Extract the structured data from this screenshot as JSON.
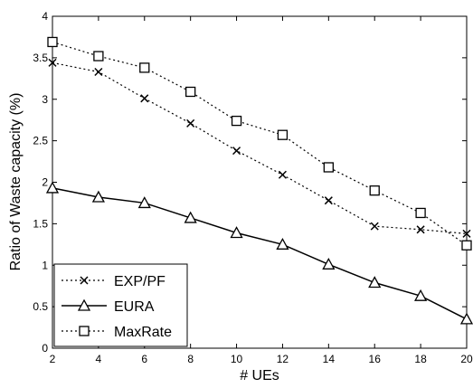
{
  "chart_data": {
    "type": "line",
    "title": "",
    "xlabel": "# UEs",
    "ylabel": "Ratio of Waste capacity (%)",
    "xlim": [
      2,
      20
    ],
    "ylim": [
      0,
      4
    ],
    "x": [
      2,
      4,
      6,
      8,
      10,
      12,
      14,
      16,
      18,
      20
    ],
    "x_ticks": [
      "2",
      "4",
      "6",
      "8",
      "10",
      "12",
      "14",
      "16",
      "18",
      "20"
    ],
    "y_ticks": [
      "0",
      "0.5",
      "1",
      "1.5",
      "2",
      "2.5",
      "3",
      "3.5",
      "4"
    ],
    "grid": false,
    "legend_position": "bottom-left",
    "series": [
      {
        "name": "EXP/PF",
        "marker": "x",
        "line_style": "dotted",
        "color": "#000000",
        "values": [
          3.44,
          3.33,
          3.01,
          2.71,
          2.38,
          2.09,
          1.78,
          1.47,
          1.43,
          1.38
        ]
      },
      {
        "name": "EURA",
        "marker": "triangle",
        "line_style": "solid",
        "color": "#000000",
        "values": [
          1.93,
          1.82,
          1.75,
          1.57,
          1.39,
          1.25,
          1.01,
          0.79,
          0.63,
          0.35
        ]
      },
      {
        "name": "MaxRate",
        "marker": "square",
        "line_style": "dotted",
        "color": "#000000",
        "values": [
          3.69,
          3.52,
          3.38,
          3.09,
          2.74,
          2.57,
          2.18,
          1.9,
          1.63,
          1.24
        ]
      }
    ]
  }
}
